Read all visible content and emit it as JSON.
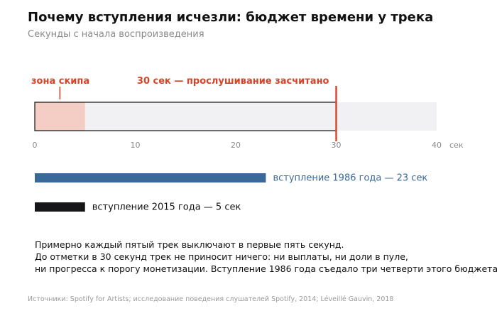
{
  "title": "Почему вступления исчезли: бюджет времени у трека",
  "subtitle": "Секунды с начала воспроизведения",
  "chart_data": {
    "type": "bar",
    "xlim": [
      0,
      40
    ],
    "x_ticks": [
      0,
      10,
      20,
      30,
      40
    ],
    "x_unit": "сек",
    "grid": false,
    "budget_bar": {
      "range": [
        0,
        30
      ],
      "skip_zone": [
        0,
        5
      ],
      "skip_label": "зона скипа",
      "threshold": 30,
      "threshold_label": "30 сек — прослушивание засчитано"
    },
    "series": [
      {
        "value": 23,
        "label": "вступление 1986 года — 23 сек",
        "color": "#3a6898"
      },
      {
        "value": 5,
        "label": "вступление 2015 года — 5 сек",
        "color": "#161618"
      }
    ],
    "colors": {
      "accent": "#d3452a",
      "skip_fill": "#f4cec4",
      "track_bg": "#f1f1f3",
      "axis_text": "#8a8a8a"
    }
  },
  "note": [
    "Примерно каждый пятый трек выключают в первые пять секунд.",
    "До отметки в 30 секунд трек не приносит ничего: ни выплаты, ни доли в пуле,",
    "ни прогресса к порогу монетизации. Вступление 1986 года съедало три четверти этого бюджета."
  ],
  "source": "Источники: Spotify for Artists; исследование поведения слушателей Spotify, 2014; Léveillé Gauvin, 2018"
}
